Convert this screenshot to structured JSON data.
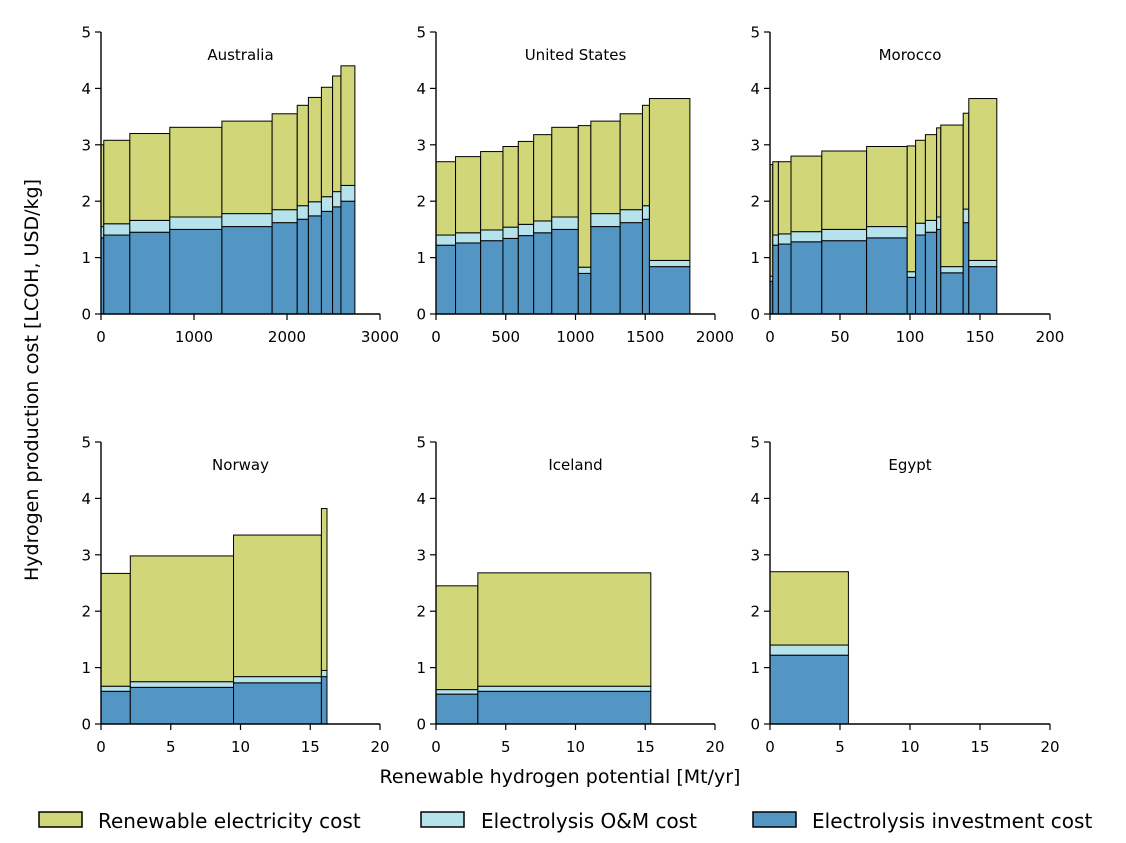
{
  "figure": {
    "ylabel": "Hydrogen production cost [LCOH, USD/kg]",
    "xlabel": "Renewable hydrogen potential [Mt/yr]",
    "legend": [
      {
        "label": "Renewable electricity cost",
        "color": "#d1d779"
      },
      {
        "label": "Electrolysis O&M cost",
        "color": "#b6e2ec"
      },
      {
        "label": "Electrolysis investment cost",
        "color": "#5395c3"
      }
    ]
  },
  "chart_data": [
    {
      "type": "bar",
      "title": "Australia",
      "xlim": [
        0,
        3000
      ],
      "ylim": [
        0,
        5
      ],
      "xticks": [
        "0",
        "1000",
        "2000",
        "3000"
      ],
      "yticks": [
        "0",
        "1",
        "2",
        "3",
        "4",
        "5"
      ],
      "series": [
        {
          "name": "Electrolysis investment cost"
        },
        {
          "name": "Electrolysis O&M cost"
        },
        {
          "name": "Renewable electricity cost"
        }
      ],
      "bars": [
        {
          "x0": 0,
          "x1": 30,
          "investment": 1.35,
          "om": 0.2,
          "electricity": 1.45
        },
        {
          "x0": 30,
          "x1": 310,
          "investment": 1.4,
          "om": 0.2,
          "electricity": 1.48
        },
        {
          "x0": 310,
          "x1": 740,
          "investment": 1.45,
          "om": 0.21,
          "electricity": 1.54
        },
        {
          "x0": 740,
          "x1": 1300,
          "investment": 1.5,
          "om": 0.22,
          "electricity": 1.59
        },
        {
          "x0": 1300,
          "x1": 1840,
          "investment": 1.55,
          "om": 0.23,
          "electricity": 1.64
        },
        {
          "x0": 1840,
          "x1": 2110,
          "investment": 1.62,
          "om": 0.23,
          "electricity": 1.7
        },
        {
          "x0": 2110,
          "x1": 2230,
          "investment": 1.68,
          "om": 0.24,
          "electricity": 1.78
        },
        {
          "x0": 2230,
          "x1": 2370,
          "investment": 1.74,
          "om": 0.25,
          "electricity": 1.85
        },
        {
          "x0": 2370,
          "x1": 2490,
          "investment": 1.82,
          "om": 0.26,
          "electricity": 1.94
        },
        {
          "x0": 2490,
          "x1": 2580,
          "investment": 1.9,
          "om": 0.27,
          "electricity": 2.05
        },
        {
          "x0": 2580,
          "x1": 2730,
          "investment": 2.0,
          "om": 0.28,
          "electricity": 2.12
        }
      ]
    },
    {
      "type": "bar",
      "title": "United States",
      "xlim": [
        0,
        2000
      ],
      "ylim": [
        0,
        5
      ],
      "xticks": [
        "0",
        "500",
        "1000",
        "1500",
        "2000"
      ],
      "yticks": [
        "0",
        "1",
        "2",
        "3",
        "4",
        "5"
      ],
      "series": [
        {
          "name": "Electrolysis investment cost"
        },
        {
          "name": "Electrolysis O&M cost"
        },
        {
          "name": "Renewable electricity cost"
        }
      ],
      "bars": [
        {
          "x0": 0,
          "x1": 140,
          "investment": 1.22,
          "om": 0.18,
          "electricity": 1.3
        },
        {
          "x0": 140,
          "x1": 320,
          "investment": 1.26,
          "om": 0.18,
          "electricity": 1.35
        },
        {
          "x0": 320,
          "x1": 480,
          "investment": 1.3,
          "om": 0.19,
          "electricity": 1.39
        },
        {
          "x0": 480,
          "x1": 590,
          "investment": 1.34,
          "om": 0.2,
          "electricity": 1.43
        },
        {
          "x0": 590,
          "x1": 700,
          "investment": 1.39,
          "om": 0.2,
          "electricity": 1.47
        },
        {
          "x0": 700,
          "x1": 830,
          "investment": 1.44,
          "om": 0.21,
          "electricity": 1.53
        },
        {
          "x0": 830,
          "x1": 1020,
          "investment": 1.5,
          "om": 0.22,
          "electricity": 1.59
        },
        {
          "x0": 1020,
          "x1": 1110,
          "investment": 0.72,
          "om": 0.11,
          "electricity": 2.51
        },
        {
          "x0": 1110,
          "x1": 1320,
          "investment": 1.55,
          "om": 0.23,
          "electricity": 1.64
        },
        {
          "x0": 1320,
          "x1": 1480,
          "investment": 1.62,
          "om": 0.23,
          "electricity": 1.7
        },
        {
          "x0": 1480,
          "x1": 1530,
          "investment": 1.68,
          "om": 0.24,
          "electricity": 1.78
        },
        {
          "x0": 1530,
          "x1": 1820,
          "investment": 0.84,
          "om": 0.11,
          "electricity": 2.87
        }
      ]
    },
    {
      "type": "bar",
      "title": "Morocco",
      "xlim": [
        0,
        200
      ],
      "ylim": [
        0,
        5
      ],
      "xticks": [
        "0",
        "50",
        "100",
        "150",
        "200"
      ],
      "yticks": [
        "0",
        "1",
        "2",
        "3",
        "4",
        "5"
      ],
      "series": [
        {
          "name": "Electrolysis investment cost"
        },
        {
          "name": "Electrolysis O&M cost"
        },
        {
          "name": "Renewable electricity cost"
        }
      ],
      "bars": [
        {
          "x0": 0,
          "x1": 2,
          "investment": 0.58,
          "om": 0.09,
          "electricity": 1.98
        },
        {
          "x0": 2,
          "x1": 6,
          "investment": 1.22,
          "om": 0.18,
          "electricity": 1.3
        },
        {
          "x0": 6,
          "x1": 15,
          "investment": 1.24,
          "om": 0.18,
          "electricity": 1.28
        },
        {
          "x0": 15,
          "x1": 37,
          "investment": 1.28,
          "om": 0.18,
          "electricity": 1.34
        },
        {
          "x0": 37,
          "x1": 69,
          "investment": 1.3,
          "om": 0.2,
          "electricity": 1.39
        },
        {
          "x0": 69,
          "x1": 98,
          "investment": 1.35,
          "om": 0.2,
          "electricity": 1.42
        },
        {
          "x0": 98,
          "x1": 104,
          "investment": 0.65,
          "om": 0.1,
          "electricity": 2.23
        },
        {
          "x0": 104,
          "x1": 111,
          "investment": 1.4,
          "om": 0.21,
          "electricity": 1.47
        },
        {
          "x0": 111,
          "x1": 119,
          "investment": 1.45,
          "om": 0.21,
          "electricity": 1.52
        },
        {
          "x0": 119,
          "x1": 122,
          "investment": 1.5,
          "om": 0.22,
          "electricity": 1.58
        },
        {
          "x0": 122,
          "x1": 138,
          "investment": 0.73,
          "om": 0.11,
          "electricity": 2.51
        },
        {
          "x0": 138,
          "x1": 142,
          "investment": 1.62,
          "om": 0.24,
          "electricity": 1.7
        },
        {
          "x0": 142,
          "x1": 162,
          "investment": 0.84,
          "om": 0.11,
          "electricity": 2.87
        }
      ]
    },
    {
      "type": "bar",
      "title": "Norway",
      "xlim": [
        0,
        20
      ],
      "ylim": [
        0,
        5
      ],
      "xticks": [
        "0",
        "5",
        "10",
        "15",
        "20"
      ],
      "yticks": [
        "0",
        "1",
        "2",
        "3",
        "4",
        "5"
      ],
      "series": [
        {
          "name": "Electrolysis investment cost"
        },
        {
          "name": "Electrolysis O&M cost"
        },
        {
          "name": "Renewable electricity cost"
        }
      ],
      "bars": [
        {
          "x0": 0,
          "x1": 2.1,
          "investment": 0.58,
          "om": 0.09,
          "electricity": 2.0
        },
        {
          "x0": 2.1,
          "x1": 9.5,
          "investment": 0.65,
          "om": 0.1,
          "electricity": 2.23
        },
        {
          "x0": 9.5,
          "x1": 15.8,
          "investment": 0.73,
          "om": 0.11,
          "electricity": 2.51
        },
        {
          "x0": 15.8,
          "x1": 16.2,
          "investment": 0.84,
          "om": 0.11,
          "electricity": 2.87
        }
      ]
    },
    {
      "type": "bar",
      "title": "Iceland",
      "xlim": [
        0,
        20
      ],
      "ylim": [
        0,
        5
      ],
      "xticks": [
        "0",
        "5",
        "10",
        "15",
        "20"
      ],
      "yticks": [
        "0",
        "1",
        "2",
        "3",
        "4",
        "5"
      ],
      "series": [
        {
          "name": "Electrolysis investment cost"
        },
        {
          "name": "Electrolysis O&M cost"
        },
        {
          "name": "Renewable electricity cost"
        }
      ],
      "bars": [
        {
          "x0": 0,
          "x1": 3.0,
          "investment": 0.53,
          "om": 0.08,
          "electricity": 1.84
        },
        {
          "x0": 3.0,
          "x1": 15.4,
          "investment": 0.58,
          "om": 0.09,
          "electricity": 2.01
        }
      ]
    },
    {
      "type": "bar",
      "title": "Egypt",
      "xlim": [
        0,
        20
      ],
      "ylim": [
        0,
        5
      ],
      "xticks": [
        "0",
        "5",
        "10",
        "15",
        "20"
      ],
      "yticks": [
        "0",
        "1",
        "2",
        "3",
        "4",
        "5"
      ],
      "series": [
        {
          "name": "Electrolysis investment cost"
        },
        {
          "name": "Electrolysis O&M cost"
        },
        {
          "name": "Renewable electricity cost"
        }
      ],
      "bars": [
        {
          "x0": 0,
          "x1": 5.6,
          "investment": 1.22,
          "om": 0.18,
          "electricity": 1.3
        }
      ]
    }
  ]
}
